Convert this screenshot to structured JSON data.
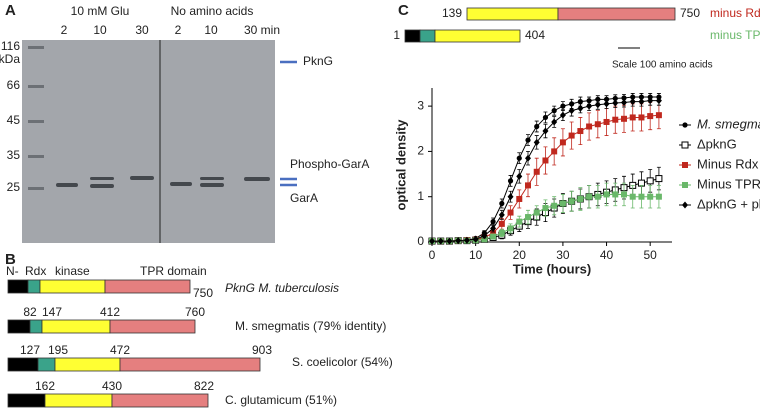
{
  "panel_a": {
    "letter": "A",
    "group1": "10 mM Glu",
    "group2": "No amino acids",
    "lanes": [
      "2",
      "10",
      "30",
      "2",
      "10",
      "30 min"
    ],
    "markers": [
      "116",
      "kDa",
      "66",
      "45",
      "35",
      "25"
    ],
    "labels": [
      "PknG",
      "Phospho-GarA",
      "GarA"
    ]
  },
  "panel_b": {
    "letter": "B",
    "rows": [
      {
        "top": [
          "N-",
          "Rdx",
          "kinase",
          "TPR domain"
        ],
        "end": "750",
        "name": "PknG M. tuberculosis"
      },
      {
        "top": [
          "82",
          "147",
          "412"
        ],
        "end": "760",
        "name": "M. smegmatis (79% identity)"
      },
      {
        "top": [
          "127",
          "195",
          "472"
        ],
        "end": "903",
        "name": "S. coelicolor (54%)"
      },
      {
        "top": [
          "162",
          "430"
        ],
        "end": "822",
        "name": "C. glutamicum (51%)"
      }
    ]
  },
  "panel_c": {
    "letter": "C",
    "constructs": [
      {
        "start": "139",
        "end": "750",
        "name": "minus Rdx"
      },
      {
        "start": "1",
        "end": "404",
        "name": "minus TPR"
      }
    ],
    "scale": "Scale 100 amino acids"
  },
  "chart_data": {
    "type": "line",
    "x_label": "Time (hours)",
    "y_label": "optical density",
    "x": [
      0,
      2,
      4,
      6,
      8,
      10,
      12,
      14,
      16,
      18,
      20,
      22,
      24,
      26,
      28,
      30,
      32,
      34,
      36,
      38,
      40,
      42,
      44,
      46,
      48,
      50,
      52
    ],
    "xlim": [
      0,
      55
    ],
    "xticks": [
      0,
      10,
      20,
      30,
      40,
      50
    ],
    "ylim": [
      0,
      3.4
    ],
    "yticks": [
      0,
      1,
      2,
      3
    ],
    "legend": "right",
    "series": [
      {
        "name": "M. smegmatis",
        "color": "#000000",
        "marker": "circle",
        "values": [
          0.02,
          0.02,
          0.02,
          0.03,
          0.04,
          0.08,
          0.2,
          0.45,
          0.85,
          1.35,
          1.85,
          2.25,
          2.55,
          2.75,
          2.9,
          3.0,
          3.05,
          3.1,
          3.12,
          3.15,
          3.15,
          3.17,
          3.18,
          3.2,
          3.2,
          3.2,
          3.2
        ],
        "errors": [
          0.01,
          0.01,
          0.01,
          0.01,
          0.02,
          0.03,
          0.05,
          0.08,
          0.1,
          0.12,
          0.12,
          0.12,
          0.12,
          0.12,
          0.1,
          0.1,
          0.1,
          0.1,
          0.08,
          0.08,
          0.08,
          0.08,
          0.08,
          0.08,
          0.08,
          0.08,
          0.08
        ]
      },
      {
        "name": "ΔpknG",
        "color": "#000000",
        "marker": "square-open",
        "values": [
          0.02,
          0.02,
          0.02,
          0.03,
          0.03,
          0.04,
          0.06,
          0.1,
          0.15,
          0.25,
          0.35,
          0.45,
          0.55,
          0.65,
          0.75,
          0.85,
          0.9,
          0.95,
          1.0,
          1.05,
          1.1,
          1.15,
          1.2,
          1.25,
          1.3,
          1.35,
          1.4
        ],
        "errors": [
          0.01,
          0.01,
          0.01,
          0.01,
          0.01,
          0.02,
          0.03,
          0.05,
          0.08,
          0.1,
          0.12,
          0.15,
          0.18,
          0.2,
          0.2,
          0.22,
          0.22,
          0.22,
          0.25,
          0.25,
          0.25,
          0.25,
          0.25,
          0.25,
          0.25,
          0.25,
          0.25
        ]
      },
      {
        "name": "Minus Rdx",
        "color": "#c0281e",
        "marker": "square",
        "values": [
          0.02,
          0.02,
          0.02,
          0.03,
          0.04,
          0.05,
          0.1,
          0.2,
          0.4,
          0.65,
          0.95,
          1.25,
          1.55,
          1.8,
          2.0,
          2.2,
          2.35,
          2.45,
          2.55,
          2.6,
          2.65,
          2.7,
          2.72,
          2.75,
          2.75,
          2.78,
          2.8
        ],
        "errors": [
          0.01,
          0.01,
          0.01,
          0.01,
          0.02,
          0.03,
          0.05,
          0.08,
          0.12,
          0.15,
          0.2,
          0.25,
          0.3,
          0.3,
          0.3,
          0.3,
          0.3,
          0.3,
          0.3,
          0.3,
          0.3,
          0.3,
          0.3,
          0.3,
          0.3,
          0.3,
          0.3
        ]
      },
      {
        "name": "Minus TPR",
        "color": "#6ab86a",
        "marker": "square",
        "values": [
          0.02,
          0.02,
          0.02,
          0.03,
          0.03,
          0.04,
          0.06,
          0.12,
          0.2,
          0.3,
          0.45,
          0.55,
          0.65,
          0.75,
          0.8,
          0.85,
          0.9,
          0.95,
          1.0,
          1.0,
          1.05,
          1.05,
          1.05,
          1.0,
          1.0,
          1.0,
          1.0
        ],
        "errors": [
          0.01,
          0.01,
          0.01,
          0.01,
          0.01,
          0.02,
          0.03,
          0.05,
          0.08,
          0.1,
          0.12,
          0.15,
          0.15,
          0.18,
          0.2,
          0.2,
          0.22,
          0.25,
          0.25,
          0.25,
          0.25,
          0.25,
          0.25,
          0.25,
          0.25,
          0.25,
          0.25
        ]
      },
      {
        "name": "ΔpknG + pknG",
        "color": "#000000",
        "marker": "diamond",
        "values": [
          0.02,
          0.02,
          0.02,
          0.03,
          0.04,
          0.06,
          0.14,
          0.3,
          0.6,
          1.0,
          1.45,
          1.85,
          2.2,
          2.45,
          2.65,
          2.8,
          2.9,
          2.95,
          3.0,
          3.03,
          3.05,
          3.07,
          3.08,
          3.1,
          3.1,
          3.12,
          3.12
        ],
        "errors": [
          0.01,
          0.01,
          0.01,
          0.01,
          0.02,
          0.03,
          0.05,
          0.08,
          0.1,
          0.12,
          0.15,
          0.15,
          0.15,
          0.15,
          0.12,
          0.12,
          0.12,
          0.1,
          0.1,
          0.1,
          0.1,
          0.1,
          0.1,
          0.1,
          0.1,
          0.1,
          0.1
        ]
      }
    ]
  }
}
